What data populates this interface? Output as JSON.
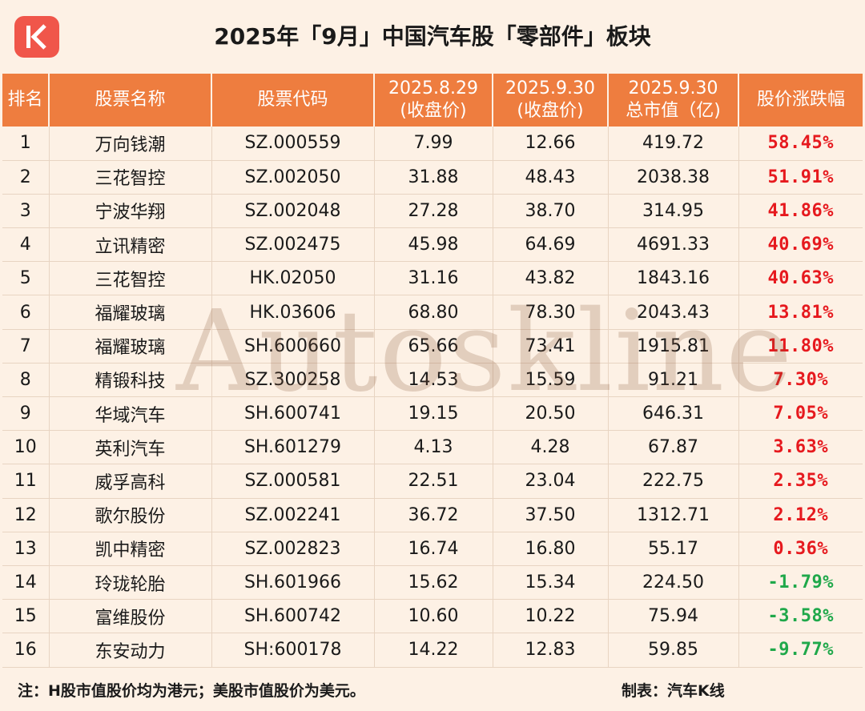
{
  "title": "2025年「9月」中国汽车股「零部件」板块",
  "logo": {
    "icon": "k-letter-icon",
    "color": "#f0564a"
  },
  "columns": [
    {
      "line1": "排名",
      "line2": ""
    },
    {
      "line1": "股票名称",
      "line2": ""
    },
    {
      "line1": "股票代码",
      "line2": ""
    },
    {
      "line1": "2025.8.29",
      "line2": "(收盘价)"
    },
    {
      "line1": "2025.9.30",
      "line2": "(收盘价)"
    },
    {
      "line1": "2025.9.30",
      "line2": "总市值（亿)"
    },
    {
      "line1": "股价涨跌幅",
      "line2": ""
    }
  ],
  "rows": [
    {
      "rank": "1",
      "name": "万向钱潮",
      "code": "SZ.000559",
      "close_aug": "7.99",
      "close_sep": "12.66",
      "mcap": "419.72",
      "change": "58.45%",
      "dir": "pos"
    },
    {
      "rank": "2",
      "name": "三花智控",
      "code": "SZ.002050",
      "close_aug": "31.88",
      "close_sep": "48.43",
      "mcap": "2038.38",
      "change": "51.91%",
      "dir": "pos"
    },
    {
      "rank": "3",
      "name": "宁波华翔",
      "code": "SZ.002048",
      "close_aug": "27.28",
      "close_sep": "38.70",
      "mcap": "314.95",
      "change": "41.86%",
      "dir": "pos"
    },
    {
      "rank": "4",
      "name": "立讯精密",
      "code": "SZ.002475",
      "close_aug": "45.98",
      "close_sep": "64.69",
      "mcap": "4691.33",
      "change": "40.69%",
      "dir": "pos"
    },
    {
      "rank": "5",
      "name": "三花智控",
      "code": "HK.02050",
      "close_aug": "31.16",
      "close_sep": "43.82",
      "mcap": "1843.16",
      "change": "40.63%",
      "dir": "pos"
    },
    {
      "rank": "6",
      "name": "福耀玻璃",
      "code": "HK.03606",
      "close_aug": "68.80",
      "close_sep": "78.30",
      "mcap": "2043.43",
      "change": "13.81%",
      "dir": "pos"
    },
    {
      "rank": "7",
      "name": "福耀玻璃",
      "code": "SH.600660",
      "close_aug": "65.66",
      "close_sep": "73.41",
      "mcap": "1915.81",
      "change": "11.80%",
      "dir": "pos"
    },
    {
      "rank": "8",
      "name": "精锻科技",
      "code": "SZ.300258",
      "close_aug": "14.53",
      "close_sep": "15.59",
      "mcap": "91.21",
      "change": "7.30%",
      "dir": "pos"
    },
    {
      "rank": "9",
      "name": "华域汽车",
      "code": "SH.600741",
      "close_aug": "19.15",
      "close_sep": "20.50",
      "mcap": "646.31",
      "change": "7.05%",
      "dir": "pos"
    },
    {
      "rank": "10",
      "name": "英利汽车",
      "code": "SH.601279",
      "close_aug": "4.13",
      "close_sep": "4.28",
      "mcap": "67.87",
      "change": "3.63%",
      "dir": "pos"
    },
    {
      "rank": "11",
      "name": "威孚高科",
      "code": "SZ.000581",
      "close_aug": "22.51",
      "close_sep": "23.04",
      "mcap": "222.75",
      "change": "2.35%",
      "dir": "pos"
    },
    {
      "rank": "12",
      "name": "歌尔股份",
      "code": "SZ.002241",
      "close_aug": "36.72",
      "close_sep": "37.50",
      "mcap": "1312.71",
      "change": "2.12%",
      "dir": "pos"
    },
    {
      "rank": "13",
      "name": "凯中精密",
      "code": "SZ.002823",
      "close_aug": "16.74",
      "close_sep": "16.80",
      "mcap": "55.17",
      "change": "0.36%",
      "dir": "pos"
    },
    {
      "rank": "14",
      "name": "玲珑轮胎",
      "code": "SH.601966",
      "close_aug": "15.62",
      "close_sep": "15.34",
      "mcap": "224.50",
      "change": "-1.79%",
      "dir": "neg"
    },
    {
      "rank": "15",
      "name": "富维股份",
      "code": "SH.600742",
      "close_aug": "10.60",
      "close_sep": "10.22",
      "mcap": "75.94",
      "change": "-3.58%",
      "dir": "neg"
    },
    {
      "rank": "16",
      "name": "东安动力",
      "code": "SH:600178",
      "close_aug": "14.22",
      "close_sep": "12.83",
      "mcap": "59.85",
      "change": "-9.77%",
      "dir": "neg"
    }
  ],
  "watermark": "Autoskline",
  "footer": {
    "note": "注：H股市值股价均为港元；美股市值股价为美元。",
    "credit": "制表：汽车K线"
  },
  "colors": {
    "header_bg": "#ee7d3f",
    "page_bg": "#fdf1e5",
    "up": "#e6191e",
    "down": "#1fa84a"
  }
}
